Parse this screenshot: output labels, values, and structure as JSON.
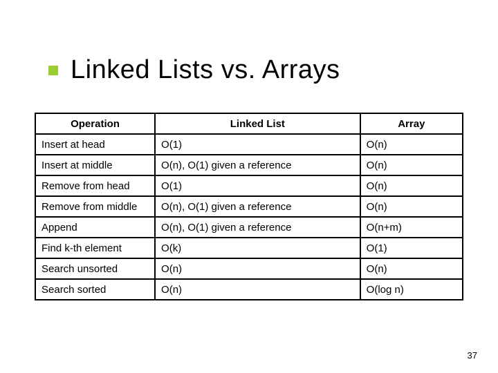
{
  "title": "Linked Lists vs. Arrays",
  "accent_color": "#9acd32",
  "table": {
    "columns": [
      "Operation",
      "Linked List",
      "Array"
    ],
    "rows": [
      [
        "Insert at head",
        "O(1)",
        "O(n)"
      ],
      [
        "Insert at middle",
        "O(n), O(1) given a reference",
        "O(n)"
      ],
      [
        "Remove from head",
        "O(1)",
        "O(n)"
      ],
      [
        "Remove from middle",
        "O(n), O(1) given a reference",
        "O(n)"
      ],
      [
        "Append",
        "O(n), O(1) given a reference",
        "O(n+m)"
      ],
      [
        "Find k-th element",
        "O(k)",
        "O(1)"
      ],
      [
        "Search unsorted",
        "O(n)",
        "O(n)"
      ],
      [
        "Search sorted",
        "O(n)",
        "O(log n)"
      ]
    ]
  },
  "page_number": "37"
}
